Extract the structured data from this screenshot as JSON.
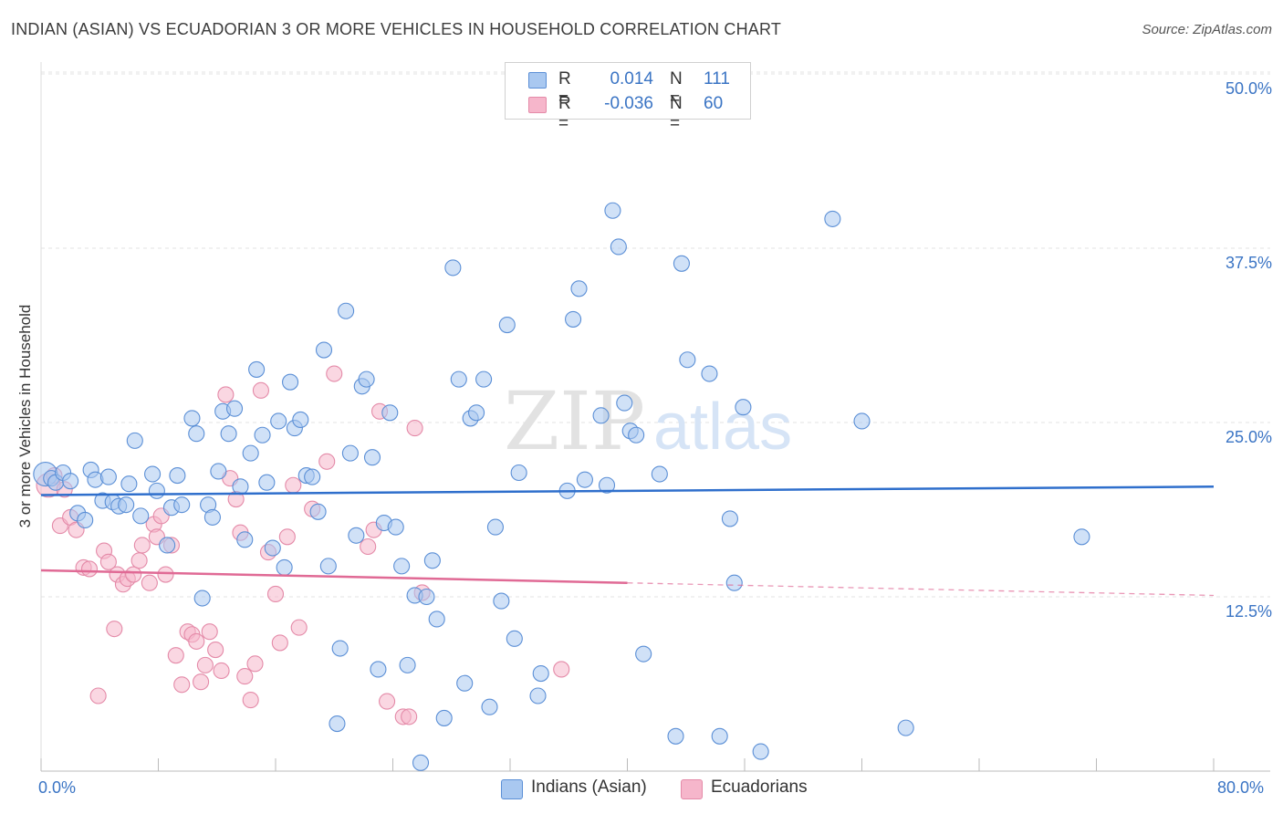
{
  "header": {
    "title": "INDIAN (ASIAN) VS ECUADORIAN 3 OR MORE VEHICLES IN HOUSEHOLD CORRELATION CHART",
    "source": "Source: ZipAtlas.com"
  },
  "watermark": {
    "zip": "ZIP",
    "atlas": "atlas"
  },
  "legend_top": {
    "rows": [
      {
        "r_label": "R =",
        "r_value": "0.014",
        "n_label": "N =",
        "n_value": "111"
      },
      {
        "r_label": "R =",
        "r_value": "-0.036",
        "n_label": "N =",
        "n_value": "60"
      }
    ]
  },
  "legend_bottom": [
    "Indians (Asian)",
    "Ecuadorians"
  ],
  "colors": {
    "blue_fill": "#a9c8f0",
    "blue_stroke": "#5b8fd6",
    "blue_line": "#2f6fcc",
    "pink_fill": "#f6b6cb",
    "pink_stroke": "#e48aa8",
    "pink_line": "#e06a95",
    "tick_label": "#3a74c4",
    "grid": "#e3e3e3"
  },
  "chart_data": {
    "type": "scatter",
    "title": "INDIAN (ASIAN) VS ECUADORIAN 3 OR MORE VEHICLES IN HOUSEHOLD CORRELATION CHART",
    "xlabel": "",
    "ylabel": "3 or more Vehicles in Household",
    "xlim": [
      0,
      80
    ],
    "ylim": [
      0,
      50
    ],
    "x_tick_labels": [
      "0.0%",
      "80.0%"
    ],
    "y_ticks": [
      12.5,
      25.0,
      37.5,
      50.0
    ],
    "y_tick_labels": [
      "12.5%",
      "25.0%",
      "37.5%",
      "50.0%"
    ],
    "grid": "horizontal dashed",
    "legend_placement": "top-center and bottom",
    "series": [
      {
        "name": "Indians (Asian)",
        "color": "#a9c8f0",
        "R": 0.014,
        "N": 111,
        "trend": {
          "x": [
            0,
            80
          ],
          "y": [
            19.8,
            20.4
          ],
          "dashed_from": null
        },
        "points": [
          [
            0.3,
            21.3
          ],
          [
            0.7,
            21.0
          ],
          [
            1.0,
            20.7
          ],
          [
            1.5,
            21.4
          ],
          [
            2.0,
            20.8
          ],
          [
            2.5,
            18.5
          ],
          [
            3.0,
            18.0
          ],
          [
            3.4,
            21.6
          ],
          [
            3.7,
            20.9
          ],
          [
            4.2,
            19.4
          ],
          [
            4.6,
            21.1
          ],
          [
            4.9,
            19.3
          ],
          [
            5.3,
            19.0
          ],
          [
            5.8,
            19.1
          ],
          [
            6.0,
            20.6
          ],
          [
            6.4,
            23.7
          ],
          [
            6.8,
            18.3
          ],
          [
            7.6,
            21.3
          ],
          [
            7.9,
            20.1
          ],
          [
            8.6,
            16.2
          ],
          [
            8.9,
            18.9
          ],
          [
            9.3,
            21.2
          ],
          [
            9.6,
            19.1
          ],
          [
            10.3,
            25.3
          ],
          [
            10.6,
            24.2
          ],
          [
            11.0,
            12.4
          ],
          [
            11.4,
            19.1
          ],
          [
            11.7,
            18.2
          ],
          [
            12.1,
            21.5
          ],
          [
            12.4,
            25.8
          ],
          [
            12.8,
            24.2
          ],
          [
            13.2,
            26.0
          ],
          [
            13.6,
            20.4
          ],
          [
            13.9,
            16.6
          ],
          [
            14.3,
            22.8
          ],
          [
            14.7,
            28.8
          ],
          [
            15.1,
            24.1
          ],
          [
            15.4,
            20.7
          ],
          [
            15.8,
            16.0
          ],
          [
            16.2,
            25.1
          ],
          [
            16.6,
            14.6
          ],
          [
            17.0,
            27.9
          ],
          [
            17.3,
            24.6
          ],
          [
            17.7,
            25.2
          ],
          [
            18.1,
            21.2
          ],
          [
            18.5,
            21.1
          ],
          [
            18.9,
            18.6
          ],
          [
            19.3,
            30.2
          ],
          [
            19.6,
            14.7
          ],
          [
            20.2,
            3.4
          ],
          [
            20.4,
            8.8
          ],
          [
            20.8,
            33.0
          ],
          [
            21.1,
            22.8
          ],
          [
            21.5,
            16.9
          ],
          [
            21.9,
            27.6
          ],
          [
            22.2,
            28.1
          ],
          [
            22.6,
            22.5
          ],
          [
            23.0,
            7.3
          ],
          [
            23.4,
            17.8
          ],
          [
            23.8,
            25.7
          ],
          [
            24.2,
            17.5
          ],
          [
            24.6,
            14.7
          ],
          [
            25.0,
            7.6
          ],
          [
            25.5,
            12.6
          ],
          [
            25.9,
            0.6
          ],
          [
            26.3,
            12.5
          ],
          [
            26.7,
            15.1
          ],
          [
            27.0,
            10.9
          ],
          [
            27.5,
            3.8
          ],
          [
            28.1,
            36.1
          ],
          [
            28.5,
            28.1
          ],
          [
            28.9,
            6.3
          ],
          [
            29.3,
            25.3
          ],
          [
            29.7,
            25.7
          ],
          [
            30.2,
            28.1
          ],
          [
            30.6,
            4.6
          ],
          [
            31.4,
            12.2
          ],
          [
            31.8,
            32.0
          ],
          [
            32.3,
            9.5
          ],
          [
            32.6,
            21.4
          ],
          [
            33.9,
            5.4
          ],
          [
            34.1,
            7.0
          ],
          [
            35.9,
            20.1
          ],
          [
            36.3,
            32.4
          ],
          [
            36.7,
            34.6
          ],
          [
            37.1,
            20.9
          ],
          [
            38.2,
            25.5
          ],
          [
            38.6,
            20.5
          ],
          [
            39.0,
            40.2
          ],
          [
            39.4,
            37.6
          ],
          [
            39.8,
            26.4
          ],
          [
            40.2,
            24.4
          ],
          [
            40.6,
            24.1
          ],
          [
            41.1,
            8.4
          ],
          [
            42.2,
            21.3
          ],
          [
            43.3,
            2.5
          ],
          [
            43.7,
            36.4
          ],
          [
            44.1,
            29.5
          ],
          [
            45.6,
            28.5
          ],
          [
            46.3,
            2.5
          ],
          [
            47.0,
            18.1
          ],
          [
            47.3,
            13.5
          ],
          [
            47.9,
            26.1
          ],
          [
            49.1,
            1.4
          ],
          [
            54.0,
            39.6
          ],
          [
            56.0,
            25.1
          ],
          [
            59.0,
            3.1
          ],
          [
            71.0,
            16.8
          ],
          [
            31.0,
            17.5
          ]
        ]
      },
      {
        "name": "Ecuadorians",
        "color": "#f6b6cb",
        "R": -0.036,
        "N": 60,
        "trend": {
          "x": [
            0,
            80
          ],
          "y": [
            14.4,
            12.6
          ],
          "dashed_from": 40
        },
        "points": [
          [
            0.5,
            20.5
          ],
          [
            0.9,
            21.2
          ],
          [
            1.3,
            17.6
          ],
          [
            1.6,
            20.2
          ],
          [
            2.0,
            18.2
          ],
          [
            2.4,
            17.3
          ],
          [
            2.9,
            14.6
          ],
          [
            3.3,
            14.5
          ],
          [
            3.9,
            5.4
          ],
          [
            4.3,
            15.8
          ],
          [
            4.6,
            15.0
          ],
          [
            5.0,
            10.2
          ],
          [
            5.2,
            14.1
          ],
          [
            5.6,
            13.4
          ],
          [
            5.9,
            13.8
          ],
          [
            6.3,
            14.1
          ],
          [
            6.7,
            15.1
          ],
          [
            6.9,
            16.2
          ],
          [
            7.4,
            13.5
          ],
          [
            7.7,
            17.7
          ],
          [
            7.9,
            16.8
          ],
          [
            8.2,
            18.3
          ],
          [
            8.5,
            14.1
          ],
          [
            8.9,
            16.2
          ],
          [
            9.2,
            8.3
          ],
          [
            9.6,
            6.2
          ],
          [
            10.0,
            10.0
          ],
          [
            10.3,
            9.8
          ],
          [
            10.6,
            9.3
          ],
          [
            10.9,
            6.4
          ],
          [
            11.2,
            7.6
          ],
          [
            11.5,
            10.0
          ],
          [
            11.9,
            8.7
          ],
          [
            12.3,
            7.2
          ],
          [
            12.6,
            27.0
          ],
          [
            12.9,
            21.0
          ],
          [
            13.3,
            19.5
          ],
          [
            13.6,
            17.1
          ],
          [
            13.9,
            6.8
          ],
          [
            14.3,
            5.1
          ],
          [
            14.6,
            7.7
          ],
          [
            15.0,
            27.3
          ],
          [
            15.5,
            15.7
          ],
          [
            16.0,
            12.7
          ],
          [
            16.3,
            9.2
          ],
          [
            16.8,
            16.8
          ],
          [
            17.2,
            20.5
          ],
          [
            17.6,
            10.3
          ],
          [
            18.5,
            18.8
          ],
          [
            19.5,
            22.2
          ],
          [
            20.0,
            28.5
          ],
          [
            22.3,
            16.1
          ],
          [
            22.7,
            17.3
          ],
          [
            23.1,
            25.8
          ],
          [
            23.6,
            5.0
          ],
          [
            24.7,
            3.9
          ],
          [
            25.1,
            3.9
          ],
          [
            25.5,
            24.6
          ],
          [
            26.0,
            12.8
          ],
          [
            35.5,
            7.3
          ]
        ]
      }
    ]
  }
}
